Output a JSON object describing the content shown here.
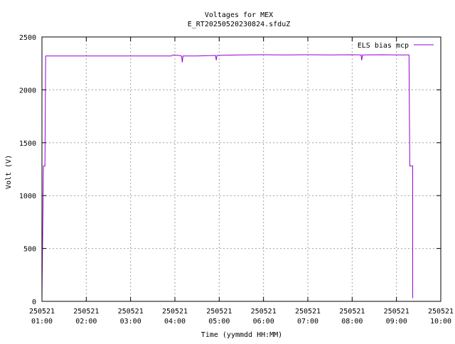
{
  "chart_data": {
    "type": "line",
    "title": "Voltages for MEX",
    "subtitle": "E_RT20250520230824.sfduZ",
    "xlabel": "Time (yymmdd HH:MM)",
    "ylabel": "Volt (V)",
    "xlim": [
      "250521 01:00",
      "250521 10:00"
    ],
    "ylim": [
      0,
      2500
    ],
    "grid": true,
    "legend_position": "top-right",
    "x_ticks": [
      {
        "date": "250521",
        "time": "01:00",
        "hour": 1
      },
      {
        "date": "250521",
        "time": "02:00",
        "hour": 2
      },
      {
        "date": "250521",
        "time": "03:00",
        "hour": 3
      },
      {
        "date": "250521",
        "time": "04:00",
        "hour": 4
      },
      {
        "date": "250521",
        "time": "05:00",
        "hour": 5
      },
      {
        "date": "250521",
        "time": "06:00",
        "hour": 6
      },
      {
        "date": "250521",
        "time": "07:00",
        "hour": 7
      },
      {
        "date": "250521",
        "time": "08:00",
        "hour": 8
      },
      {
        "date": "250521",
        "time": "09:00",
        "hour": 9
      },
      {
        "date": "250521",
        "time": "10:00",
        "hour": 10
      }
    ],
    "y_ticks": [
      "0",
      "500",
      "1000",
      "1500",
      "2000",
      "2500"
    ],
    "series": [
      {
        "name": "ELS bias mcp",
        "color": "#9400d3",
        "points": [
          [
            "01:00",
            30
          ],
          [
            "01:00",
            30
          ],
          [
            "01:02",
            1280
          ],
          [
            "01:02",
            1280
          ],
          [
            "01:04",
            1280
          ],
          [
            "01:05",
            2320
          ],
          [
            "03:55",
            2320
          ],
          [
            "03:58",
            2330
          ],
          [
            "04:05",
            2325
          ],
          [
            "04:09",
            2320
          ],
          [
            "04:10",
            2260
          ],
          [
            "04:11",
            2320
          ],
          [
            "04:30",
            2320
          ],
          [
            "04:55",
            2325
          ],
          [
            "04:56",
            2280
          ],
          [
            "04:57",
            2325
          ],
          [
            "05:10",
            2328
          ],
          [
            "05:30",
            2330
          ],
          [
            "06:00",
            2332
          ],
          [
            "06:30",
            2330
          ],
          [
            "07:00",
            2332
          ],
          [
            "07:30",
            2330
          ],
          [
            "08:00",
            2332
          ],
          [
            "08:12",
            2330
          ],
          [
            "08:13",
            2280
          ],
          [
            "08:14",
            2330
          ],
          [
            "08:40",
            2332
          ],
          [
            "09:00",
            2330
          ],
          [
            "09:17",
            2330
          ],
          [
            "09:18",
            1280
          ],
          [
            "09:22",
            1280
          ],
          [
            "09:22",
            30
          ]
        ]
      }
    ]
  }
}
